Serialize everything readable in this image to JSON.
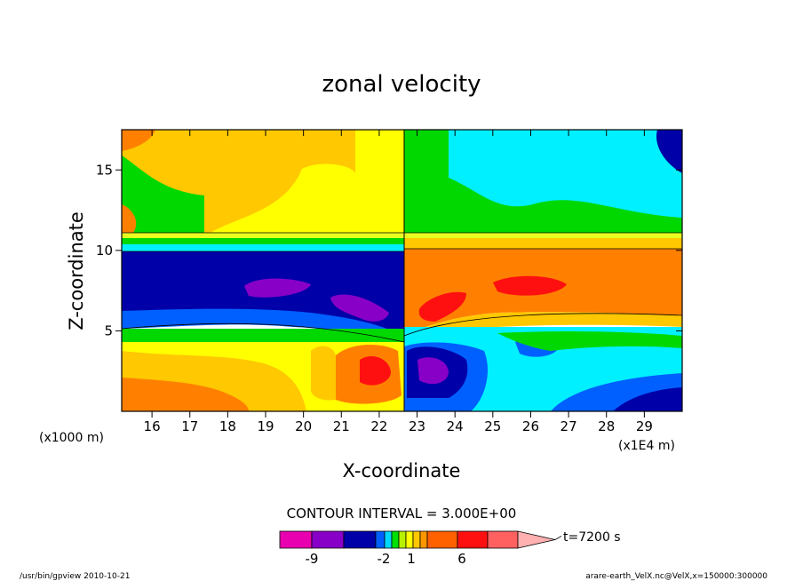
{
  "chart_data": {
    "type": "heatmap",
    "title": "zonal velocity",
    "xlabel": "X-coordinate",
    "ylabel": "Z-coordinate",
    "x_unit_note": "(x1E4 m)",
    "y_unit_note": "(x1000 m)",
    "x_ticks": [
      "16",
      "17",
      "18",
      "19",
      "20",
      "21",
      "22",
      "23",
      "24",
      "25",
      "26",
      "27",
      "28",
      "29"
    ],
    "y_ticks": [
      "5",
      "10",
      "15"
    ],
    "xlim": [
      15.2,
      30.0
    ],
    "ylim": [
      0.0,
      17.5
    ],
    "contour_interval_label": "CONTOUR INTERVAL = 3.000E+00",
    "colorbar_ticks": [
      {
        "label": "-9",
        "value": -9
      },
      {
        "label": "-2",
        "value": -2
      },
      {
        "label": "1",
        "value": 1
      },
      {
        "label": "6",
        "value": 6
      }
    ],
    "colorbar_colors": [
      "#e800b0",
      "#8800c8",
      "#0000a8",
      "#0060ff",
      "#00d8ff",
      "#00e000",
      "#b8f000",
      "#ffff00",
      "#ffc800",
      "#ff9800",
      "#ff6000",
      "#ff1010",
      "#ff6060",
      "#ffb0b0"
    ],
    "time_label": "t=7200 s",
    "footer_left": "/usr/bin/gpview  2010-10-21",
    "footer_right": "arare-earth_VelX.nc@VelX,x=150000:300000"
  },
  "palette": {
    "magenta": "#e800b0",
    "purple": "#8800c8",
    "navy": "#0000a8",
    "blue": "#0060ff",
    "cyan": "#00f0ff",
    "green": "#00d800",
    "yellow": "#ffff00",
    "amber": "#ffc800",
    "orange": "#ff8000",
    "red": "#ff1010",
    "light_yellow": "#e8ff20"
  }
}
